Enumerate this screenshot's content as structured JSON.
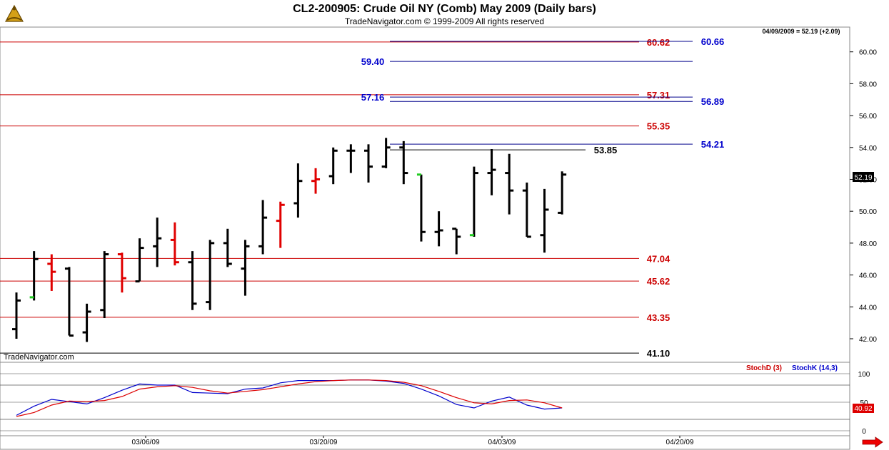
{
  "header": {
    "title": "CL2-200905:  Crude Oil NY (Comb) May 2009  (Daily bars)",
    "subtitle": "TradeNavigator.com © 1999-2009 All rights reserved"
  },
  "watermark": "TradeNavigator.com",
  "last_quote": "04/09/2009 = 52.19 (+2.09)",
  "price_tag": "52.19",
  "stoch_tag": "40.92",
  "colors": {
    "up_bar": "#000000",
    "down_bar": "#e00000",
    "red_line": "#cc0000",
    "blue_line": "#00008b",
    "stoch_k": "#0000cc",
    "stoch_d": "#dd0000",
    "green_tick": "#22cc22"
  },
  "chart_data": [
    {
      "type": "ohlc",
      "title": "CL2-200905:  Crude Oil NY (Comb) May 2009  (Daily bars)",
      "ylim": [
        41,
        61.5
      ],
      "yticks": [
        "42.00",
        "44.00",
        "46.00",
        "48.00",
        "50.00",
        "52.00",
        "54.00",
        "56.00",
        "58.00",
        "60.00"
      ],
      "xticks": [
        "03/06/09",
        "03/20/09",
        "04/03/09",
        "04/20/09"
      ],
      "bars": [
        {
          "o": 42.6,
          "h": 44.9,
          "l": 42.0,
          "c": 44.4,
          "d": "up"
        },
        {
          "o": 44.6,
          "h": 47.5,
          "l": 44.4,
          "c": 47.0,
          "d": "up",
          "g": "open"
        },
        {
          "o": 46.7,
          "h": 47.3,
          "l": 45.0,
          "c": 46.2,
          "d": "down"
        },
        {
          "o": 46.4,
          "h": 46.5,
          "l": 42.2,
          "c": 42.2,
          "d": "up"
        },
        {
          "o": 42.4,
          "h": 44.2,
          "l": 41.8,
          "c": 43.7,
          "d": "up"
        },
        {
          "o": 43.8,
          "h": 47.5,
          "l": 43.3,
          "c": 47.3,
          "d": "up"
        },
        {
          "o": 47.3,
          "h": 47.4,
          "l": 44.9,
          "c": 45.8,
          "d": "down"
        },
        {
          "o": 45.6,
          "h": 48.3,
          "l": 45.6,
          "c": 47.7,
          "d": "up"
        },
        {
          "o": 47.8,
          "h": 49.6,
          "l": 46.5,
          "c": 48.3,
          "d": "up"
        },
        {
          "o": 48.2,
          "h": 49.3,
          "l": 46.6,
          "c": 46.8,
          "d": "down"
        },
        {
          "o": 46.8,
          "h": 47.5,
          "l": 43.8,
          "c": 44.2,
          "d": "up"
        },
        {
          "o": 44.3,
          "h": 48.2,
          "l": 43.8,
          "c": 48.0,
          "d": "up"
        },
        {
          "o": 48.0,
          "h": 48.9,
          "l": 46.5,
          "c": 46.7,
          "d": "up"
        },
        {
          "o": 46.4,
          "h": 48.2,
          "l": 44.7,
          "c": 47.8,
          "d": "up"
        },
        {
          "o": 47.8,
          "h": 50.7,
          "l": 47.3,
          "c": 49.6,
          "d": "up"
        },
        {
          "o": 49.4,
          "h": 50.6,
          "l": 47.7,
          "c": 50.4,
          "d": "down"
        },
        {
          "o": 50.5,
          "h": 53.0,
          "l": 49.6,
          "c": 51.9,
          "d": "up"
        },
        {
          "o": 51.9,
          "h": 52.7,
          "l": 51.1,
          "c": 52.0,
          "d": "down"
        },
        {
          "o": 52.2,
          "h": 54.0,
          "l": 51.7,
          "c": 53.8,
          "d": "up"
        },
        {
          "o": 53.8,
          "h": 54.2,
          "l": 52.4,
          "c": 53.8,
          "d": "up"
        },
        {
          "o": 53.8,
          "h": 54.2,
          "l": 51.8,
          "c": 52.8,
          "d": "up"
        },
        {
          "o": 52.8,
          "h": 54.6,
          "l": 52.7,
          "c": 54.0,
          "d": "up"
        },
        {
          "o": 54.0,
          "h": 54.4,
          "l": 51.7,
          "c": 52.4,
          "d": "up"
        },
        {
          "o": 52.3,
          "h": 52.3,
          "l": 48.1,
          "c": 48.7,
          "d": "up",
          "g": "open"
        },
        {
          "o": 48.7,
          "h": 50.0,
          "l": 47.8,
          "c": 48.8,
          "d": "up"
        },
        {
          "o": 48.9,
          "h": 48.9,
          "l": 47.3,
          "c": 48.4,
          "d": "up"
        },
        {
          "o": 48.5,
          "h": 52.8,
          "l": 48.4,
          "c": 52.4,
          "d": "up",
          "g": "open"
        },
        {
          "o": 52.4,
          "h": 53.9,
          "l": 51.0,
          "c": 52.6,
          "d": "up"
        },
        {
          "o": 52.4,
          "h": 53.6,
          "l": 49.8,
          "c": 51.3,
          "d": "up"
        },
        {
          "o": 51.3,
          "h": 51.8,
          "l": 48.4,
          "c": 48.4,
          "d": "up"
        },
        {
          "o": 48.5,
          "h": 51.4,
          "l": 47.4,
          "c": 50.1,
          "d": "up"
        },
        {
          "o": 49.9,
          "h": 52.5,
          "l": 49.8,
          "c": 52.3,
          "d": "up"
        }
      ]
    },
    {
      "type": "line",
      "title": "StochD (3)  StochK (14,3)",
      "ylim": [
        0,
        100
      ],
      "yticks": [
        "100",
        "50",
        "0"
      ],
      "series": [
        {
          "name": "StochK (14,3)",
          "values": [
            27,
            43,
            55,
            51,
            47,
            58,
            71,
            82,
            80,
            80,
            67,
            66,
            65,
            73,
            75,
            84,
            88,
            88,
            88,
            89,
            89,
            87,
            83,
            73,
            61,
            46,
            40,
            52,
            59,
            45,
            38,
            40
          ]
        },
        {
          "name": "StochD (3)",
          "values": [
            25,
            32,
            45,
            52,
            51,
            53,
            60,
            73,
            77,
            79,
            76,
            70,
            66,
            69,
            72,
            77,
            82,
            86,
            88,
            89,
            89,
            88,
            85,
            79,
            69,
            58,
            49,
            47,
            53,
            54,
            49,
            40
          ]
        }
      ]
    }
  ],
  "levels": {
    "red": [
      {
        "label": "60.62",
        "value": 60.62
      },
      {
        "label": "57.31",
        "value": 57.31
      },
      {
        "label": "55.35",
        "value": 55.35
      },
      {
        "label": "47.04",
        "value": 47.04
      },
      {
        "label": "45.62",
        "value": 45.62
      },
      {
        "label": "43.35",
        "value": 43.35
      }
    ],
    "blue": [
      {
        "label": "60.66",
        "value": 60.66
      },
      {
        "label": "59.40",
        "value": 59.4
      },
      {
        "label": "57.16",
        "value": 57.16
      },
      {
        "label": "56.89",
        "value": 56.89
      },
      {
        "label": "54.21",
        "value": 54.21
      }
    ],
    "black": [
      {
        "label": "53.85",
        "value": 53.85
      },
      {
        "label": "41.10",
        "value": 41.1
      }
    ]
  },
  "stoch_labels": {
    "d": "StochD (3)",
    "k": "StochK (14,3)"
  }
}
